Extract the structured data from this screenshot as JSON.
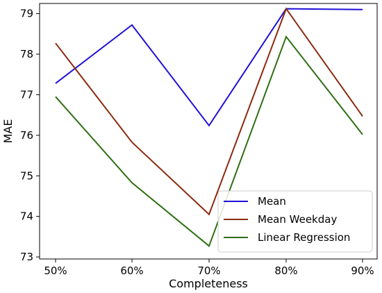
{
  "chart_data": {
    "type": "line",
    "title": "",
    "xlabel": "Completeness",
    "ylabel": "MAE",
    "categories": [
      "50%",
      "60%",
      "70%",
      "80%",
      "90%"
    ],
    "ylim": [
      72.95,
      79.25
    ],
    "yticks": [
      73,
      74,
      75,
      76,
      77,
      78,
      79
    ],
    "grid": false,
    "legend_position": "bottom-right",
    "series": [
      {
        "name": "Mean",
        "color": "#1f0fd6",
        "values": [
          77.28,
          78.72,
          76.24,
          79.12,
          79.1
        ]
      },
      {
        "name": "Mean Weekday",
        "color": "#8b2a0e",
        "values": [
          78.27,
          75.83,
          74.05,
          79.12,
          76.47
        ]
      },
      {
        "name": "Linear Regression",
        "color": "#2e6e12",
        "values": [
          76.95,
          74.83,
          73.27,
          78.43,
          76.02
        ]
      }
    ]
  }
}
